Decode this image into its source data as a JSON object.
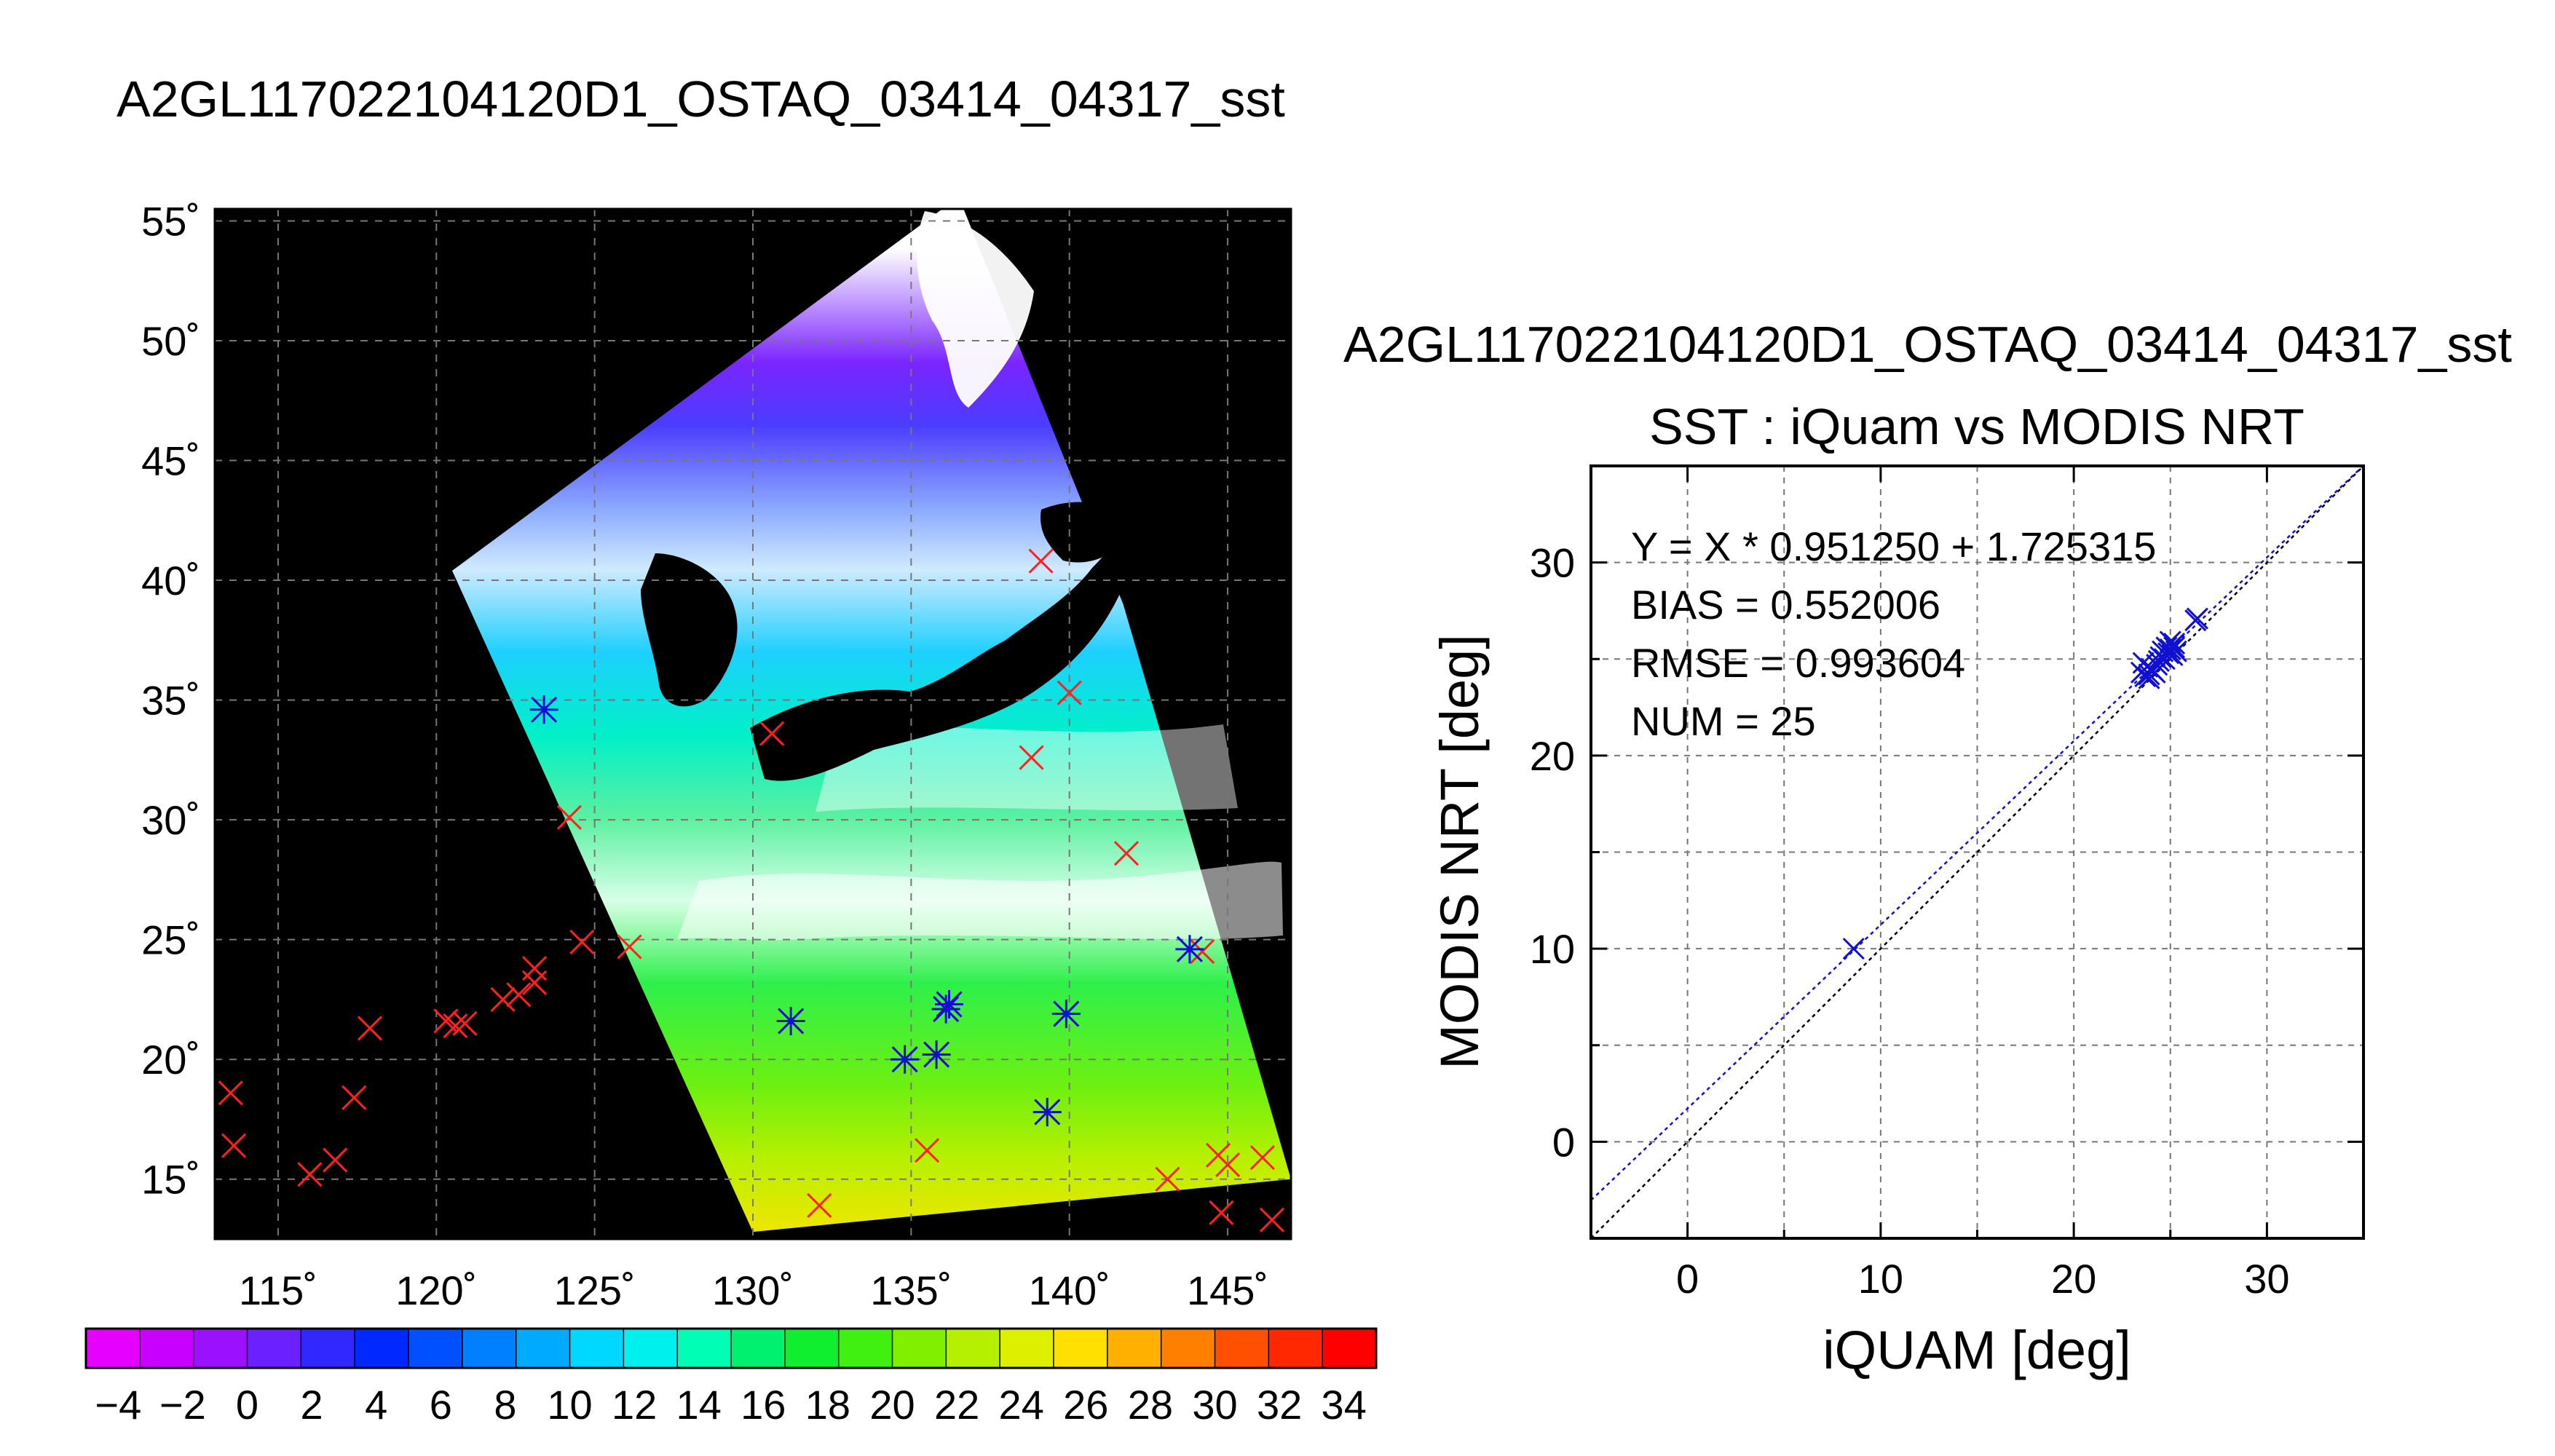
{
  "figure": {
    "map_title": "A2GL117022104120D1_OSTAQ_03414_04317_sst",
    "scatter_title": "A2GL117022104120D1_OSTAQ_03414_04317_sst"
  },
  "colors": {
    "match_marker": "#ff2020",
    "scatter_marker": "#1010d0",
    "fit_line": "#1010d0",
    "identity_line": "#000000",
    "grid": "#777777",
    "land_and_nodata": "#000000",
    "cloud": "#ffffff"
  },
  "chart_data": [
    {
      "type": "heatmap",
      "title": "A2GL117022104120D1_OSTAQ_03414_04317_sst",
      "xlim": [
        113,
        147
      ],
      "ylim": [
        12.5,
        55.5
      ],
      "x_tick_values": [
        115,
        120,
        125,
        130,
        135,
        140,
        145
      ],
      "x_tick_labels": [
        "115˚",
        "120˚",
        "125˚",
        "130˚",
        "135˚",
        "140˚",
        "145˚"
      ],
      "y_tick_values": [
        15,
        20,
        25,
        30,
        35,
        40,
        45,
        50,
        55
      ],
      "y_tick_labels": [
        "15˚",
        "20˚",
        "25˚",
        "30˚",
        "35˚",
        "40˚",
        "45˚",
        "50˚",
        "55˚"
      ],
      "grid": true,
      "colorbar": {
        "min": -5,
        "max": 35,
        "tick_values": [
          -4,
          -2,
          0,
          2,
          4,
          6,
          8,
          10,
          12,
          14,
          16,
          18,
          20,
          22,
          24,
          26,
          28,
          30,
          32,
          34
        ],
        "tick_labels": [
          "−4",
          "−2",
          "0",
          "2",
          "4",
          "6",
          "8",
          "10",
          "12",
          "14",
          "16",
          "18",
          "20",
          "22",
          "24",
          "26",
          "28",
          "30",
          "32",
          "34"
        ],
        "colors": [
          "#e600ff",
          "#c800ff",
          "#9a10ff",
          "#6a20ff",
          "#3028ff",
          "#0028ff",
          "#0050ff",
          "#0080ff",
          "#00aaff",
          "#00d8ff",
          "#00f0ee",
          "#00ffb4",
          "#00f070",
          "#10ee30",
          "#40f010",
          "#80f000",
          "#b4f000",
          "#dcf000",
          "#ffe000",
          "#ffb000",
          "#ff8000",
          "#ff5000",
          "#ff2800",
          "#ff0000"
        ]
      },
      "swath_corners": [
        [
          120.5,
          40.4
        ],
        [
          136.5,
          56.0
        ],
        [
          141.7,
          39.0
        ],
        [
          147.0,
          15.0
        ],
        [
          130.0,
          12.8
        ]
      ],
      "match_points": [
        {
          "lon": 113.5,
          "lat": 18.6
        },
        {
          "lon": 113.6,
          "lat": 16.4
        },
        {
          "lon": 116.0,
          "lat": 15.2
        },
        {
          "lon": 116.8,
          "lat": 15.8
        },
        {
          "lon": 117.4,
          "lat": 18.4
        },
        {
          "lon": 117.9,
          "lat": 21.3
        },
        {
          "lon": 120.3,
          "lat": 21.6
        },
        {
          "lon": 120.6,
          "lat": 21.4
        },
        {
          "lon": 120.9,
          "lat": 21.5
        },
        {
          "lon": 122.1,
          "lat": 22.5
        },
        {
          "lon": 122.6,
          "lat": 22.7
        },
        {
          "lon": 123.1,
          "lat": 23.2
        },
        {
          "lon": 123.1,
          "lat": 23.8
        },
        {
          "lon": 124.6,
          "lat": 24.9
        },
        {
          "lon": 126.1,
          "lat": 24.7
        },
        {
          "lon": 123.4,
          "lat": 34.6
        },
        {
          "lon": 124.2,
          "lat": 30.1
        },
        {
          "lon": 130.6,
          "lat": 33.6
        },
        {
          "lon": 131.2,
          "lat": 21.6
        },
        {
          "lon": 132.1,
          "lat": 13.9
        },
        {
          "lon": 134.8,
          "lat": 20.0
        },
        {
          "lon": 135.5,
          "lat": 16.2
        },
        {
          "lon": 135.8,
          "lat": 20.2
        },
        {
          "lon": 136.1,
          "lat": 22.1
        },
        {
          "lon": 136.2,
          "lat": 22.3
        },
        {
          "lon": 138.8,
          "lat": 32.6
        },
        {
          "lon": 139.1,
          "lat": 40.8
        },
        {
          "lon": 139.3,
          "lat": 17.8
        },
        {
          "lon": 139.9,
          "lat": 21.9
        },
        {
          "lon": 140.0,
          "lat": 35.3
        },
        {
          "lon": 141.8,
          "lat": 28.6
        },
        {
          "lon": 143.1,
          "lat": 15.0
        },
        {
          "lon": 143.8,
          "lat": 24.6
        },
        {
          "lon": 144.2,
          "lat": 24.5
        },
        {
          "lon": 144.7,
          "lat": 16.0
        },
        {
          "lon": 144.8,
          "lat": 13.6
        },
        {
          "lon": 145.0,
          "lat": 15.6
        },
        {
          "lon": 146.1,
          "lat": 15.9
        },
        {
          "lon": 146.4,
          "lat": 13.3
        }
      ],
      "starred_points": [
        {
          "lon": 123.4,
          "lat": 34.6
        },
        {
          "lon": 131.2,
          "lat": 21.6
        },
        {
          "lon": 134.8,
          "lat": 20.0
        },
        {
          "lon": 135.8,
          "lat": 20.2
        },
        {
          "lon": 136.1,
          "lat": 22.1
        },
        {
          "lon": 136.2,
          "lat": 22.3
        },
        {
          "lon": 139.3,
          "lat": 17.8
        },
        {
          "lon": 139.9,
          "lat": 21.9
        },
        {
          "lon": 143.8,
          "lat": 24.6
        }
      ]
    },
    {
      "type": "scatter",
      "title": "A2GL117022104120D1_OSTAQ_03414_04317_sst",
      "subtitle": "SST : iQuam vs MODIS NRT",
      "xlabel": "iQUAM [deg]",
      "ylabel": "MODIS NRT [deg]",
      "xlim": [
        -5,
        35
      ],
      "ylim": [
        -5,
        35
      ],
      "x_ticks": [
        0,
        10,
        20,
        30
      ],
      "y_ticks": [
        0,
        10,
        20,
        30
      ],
      "grid_step": 5,
      "grid": true,
      "stats": [
        "Y = X * 0.951250 + 1.725315",
        "BIAS = 0.552006",
        "RMSE = 0.993604",
        "NUM = 25"
      ],
      "fit": {
        "slope": 0.95125,
        "intercept": 1.725315
      },
      "identity_line": true,
      "points": [
        {
          "x": 8.6,
          "y": 10.0
        },
        {
          "x": 23.5,
          "y": 24.3
        },
        {
          "x": 23.6,
          "y": 24.8
        },
        {
          "x": 23.7,
          "y": 24.1
        },
        {
          "x": 23.8,
          "y": 24.6
        },
        {
          "x": 23.9,
          "y": 24.0
        },
        {
          "x": 24.0,
          "y": 24.5
        },
        {
          "x": 24.2,
          "y": 24.3
        },
        {
          "x": 24.3,
          "y": 24.7
        },
        {
          "x": 24.5,
          "y": 25.1
        },
        {
          "x": 24.6,
          "y": 25.4
        },
        {
          "x": 24.7,
          "y": 25.0
        },
        {
          "x": 24.8,
          "y": 25.6
        },
        {
          "x": 24.9,
          "y": 25.3
        },
        {
          "x": 25.0,
          "y": 25.9
        },
        {
          "x": 25.1,
          "y": 25.2
        },
        {
          "x": 25.2,
          "y": 25.6
        },
        {
          "x": 25.3,
          "y": 25.4
        },
        {
          "x": 25.0,
          "y": 25.5
        },
        {
          "x": 24.4,
          "y": 24.9
        },
        {
          "x": 23.9,
          "y": 24.2
        },
        {
          "x": 25.2,
          "y": 25.8
        },
        {
          "x": 24.1,
          "y": 24.4
        },
        {
          "x": 26.3,
          "y": 27.0
        },
        {
          "x": 26.4,
          "y": 27.1
        }
      ]
    }
  ]
}
